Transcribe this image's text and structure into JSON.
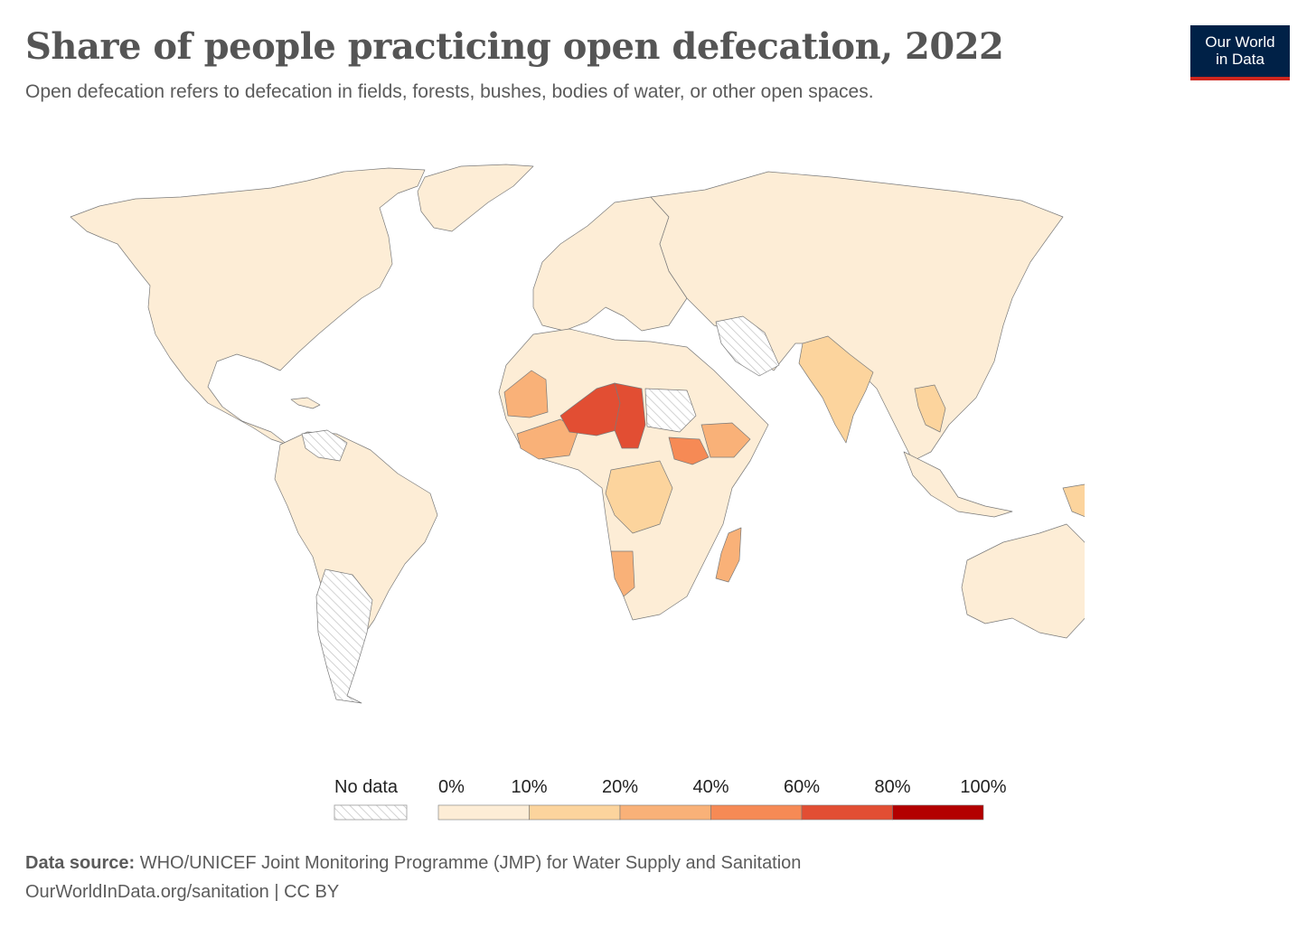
{
  "header": {
    "title": "Share of people practicing open defecation, 2022",
    "subtitle": "Open defecation refers to defecation in fields, forests, bushes, bodies of water, or other open spaces.",
    "logo_line1": "Our World",
    "logo_line2": "in Data"
  },
  "legend": {
    "no_data_label": "No data",
    "ticks": [
      "0%",
      "10%",
      "20%",
      "40%",
      "60%",
      "80%",
      "100%"
    ],
    "bins": [
      {
        "range": [
          0,
          10
        ],
        "color": "#fdedd6"
      },
      {
        "range": [
          10,
          20
        ],
        "color": "#fcd49d"
      },
      {
        "range": [
          20,
          40
        ],
        "color": "#f9b178"
      },
      {
        "range": [
          40,
          60
        ],
        "color": "#f68a55"
      },
      {
        "range": [
          60,
          80
        ],
        "color": "#e24e33"
      },
      {
        "range": [
          80,
          100
        ],
        "color": "#b30000"
      }
    ]
  },
  "colors": {
    "no_data_fill": "#ffffff",
    "no_data_hatch": "#c8c8c8",
    "border": "#7a7a7a",
    "brand": "#002147",
    "brand_accent": "#ce261e"
  },
  "footer": {
    "source_label": "Data source:",
    "source_text": " WHO/UNICEF Joint Monitoring Programme (JMP) for Water Supply and Sanitation",
    "url_line": "OurWorldInData.org/sanitation | CC BY"
  }
}
